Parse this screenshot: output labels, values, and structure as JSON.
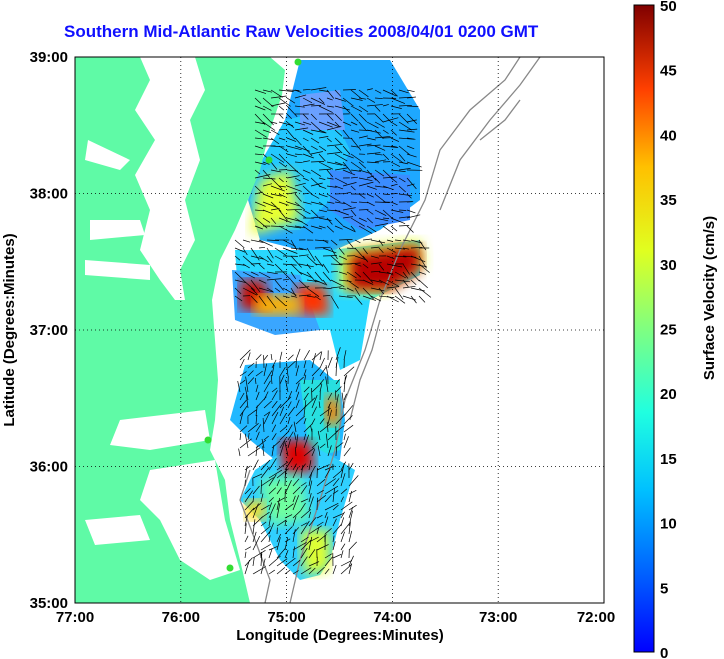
{
  "title": "Southern Mid-Atlantic Raw Velocities 2008/04/01 0200 GMT",
  "x_axis": {
    "label": "Longitude (Degrees:Minutes)",
    "ticks": [
      "77:00",
      "76:00",
      "75:00",
      "74:00",
      "73:00",
      "72:00"
    ]
  },
  "y_axis": {
    "label": "Latitude (Degrees:Minutes)",
    "ticks": [
      "39:00",
      "38:00",
      "37:00",
      "36:00",
      "35:00"
    ]
  },
  "colorbar": {
    "label": "Surface Velocity (cm/s)",
    "min": 0,
    "max": 50,
    "ticks": [
      "50",
      "45",
      "40",
      "35",
      "30",
      "25",
      "20",
      "15",
      "10",
      "5",
      "0"
    ]
  },
  "colors": {
    "land": "#5ffaa6",
    "water": "#ffffff",
    "title_text": "#1010ff",
    "station_marker": "#33dd33",
    "bathymetry": "#888888"
  },
  "map_extent": {
    "lon": [
      -77,
      -72
    ],
    "lat": [
      35,
      39
    ]
  }
}
